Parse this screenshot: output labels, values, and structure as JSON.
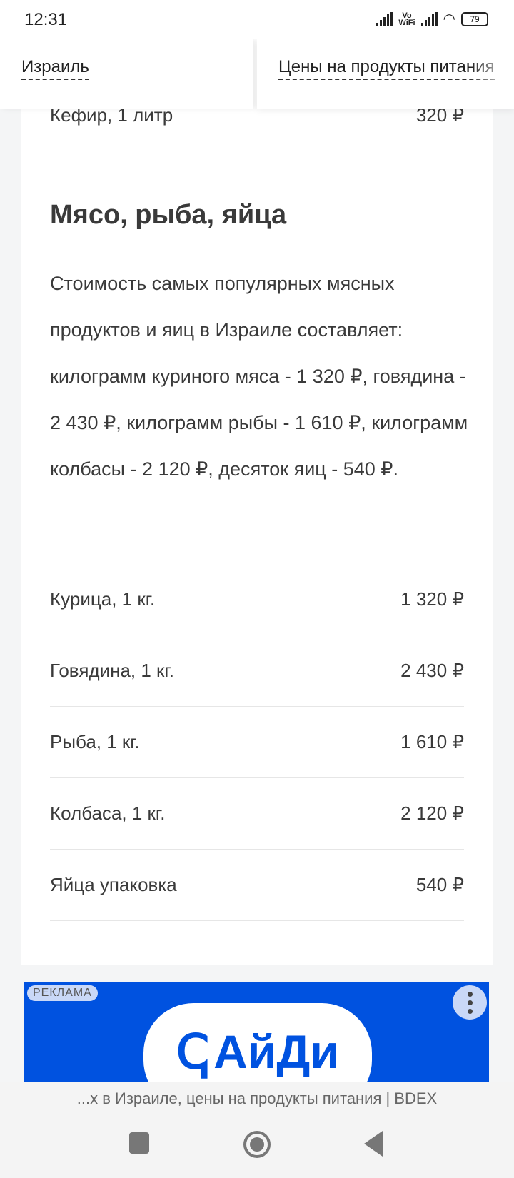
{
  "status": {
    "time": "12:31",
    "vowifi_top": "Vo",
    "vowifi_bottom": "WiFi",
    "battery": "79"
  },
  "tabs": [
    {
      "label": "Израиль"
    },
    {
      "label": "Цены на продукты питания"
    }
  ],
  "top_row": {
    "name": "Кефир, 1 литр",
    "price": "320 ₽"
  },
  "section": {
    "title": "Мясо, рыба, яйца",
    "text": "Стоимость самых популярных мясных продуктов и яиц в Израиле составляет: килограмм куриного мяса - 1 320 ₽, говядина - 2 430 ₽, килограмм рыбы - 1 610 ₽, килограмм колбасы - 2 120 ₽, десяток яиц - 540 ₽."
  },
  "prices": [
    {
      "name": "Курица, 1 кг.",
      "price": "1 320 ₽"
    },
    {
      "name": "Говядина, 1 кг.",
      "price": "2 430 ₽"
    },
    {
      "name": "Рыба, 1 кг.",
      "price": "1 610 ₽"
    },
    {
      "name": "Колбаса, 1 кг.",
      "price": "2 120 ₽"
    },
    {
      "name": "Яйца упаковка",
      "price": "540 ₽"
    }
  ],
  "ad": {
    "label": "РЕКЛАМА",
    "brand": "АйДи",
    "color": "#0052e0"
  },
  "page_title": "...х в Израиле, цены на продукты питания | BDEX"
}
